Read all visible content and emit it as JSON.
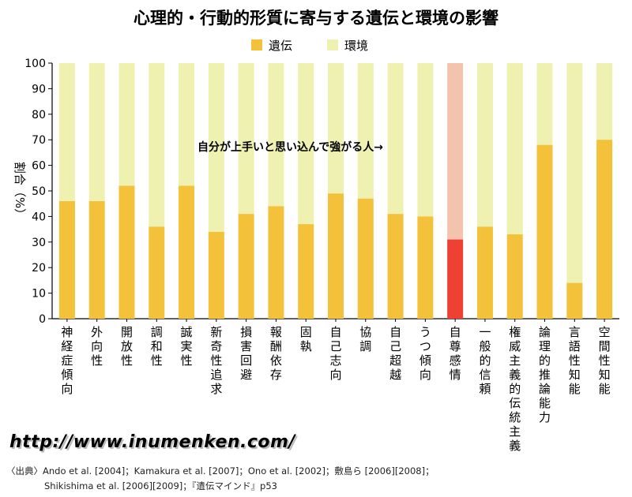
{
  "colors": {
    "heredity": "#f3c13a",
    "environment": "#eef1b0",
    "highlight_heredity": "#ef4034",
    "highlight_environment": "#f2c4ae"
  },
  "url": "http://www.inumenken.com/",
  "source": {
    "line1": "〈出典〉Ando et al. [2004]；Kamakura et al. [2007]；Ono et al. [2002]；敷島ら [2006][2008]；",
    "line2": "Shikishima et al. [2006][2009]；『遺伝マインド』p53"
  },
  "chart_data": {
    "type": "bar",
    "stacked": true,
    "title": "心理的・行動的形質に寄与する遺伝と環境の影響",
    "ylabel": "割合（%）",
    "xlabel": "",
    "ylim": [
      0,
      100
    ],
    "yticks": [
      "0",
      "10",
      "20",
      "30",
      "40",
      "50",
      "60",
      "70",
      "80",
      "90",
      "100"
    ],
    "legend": {
      "position": "top-center",
      "entries": [
        "遺伝",
        "環境"
      ]
    },
    "annotation": "自分が上手いと思い込んで強がる人→",
    "highlight_category": "自尊感情",
    "categories": [
      "神経症傾向",
      "外向性",
      "開放性",
      "調和性",
      "誠実性",
      "新奇性追求",
      "損害回避",
      "報酬依存",
      "固執",
      "自己志向",
      "協調",
      "自己超越",
      "うつ傾向",
      "自尊感情",
      "一般的信頼",
      "権威主義的伝統主義",
      "論理的推論能力",
      "言語性知能",
      "空間性知能"
    ],
    "series": [
      {
        "name": "遺伝",
        "values": [
          46,
          46,
          52,
          36,
          52,
          34,
          41,
          44,
          37,
          49,
          47,
          41,
          40,
          31,
          36,
          33,
          68,
          14,
          70
        ]
      },
      {
        "name": "環境",
        "values": [
          54,
          54,
          48,
          64,
          48,
          66,
          59,
          56,
          63,
          51,
          53,
          59,
          60,
          69,
          64,
          67,
          32,
          86,
          30
        ]
      }
    ]
  }
}
